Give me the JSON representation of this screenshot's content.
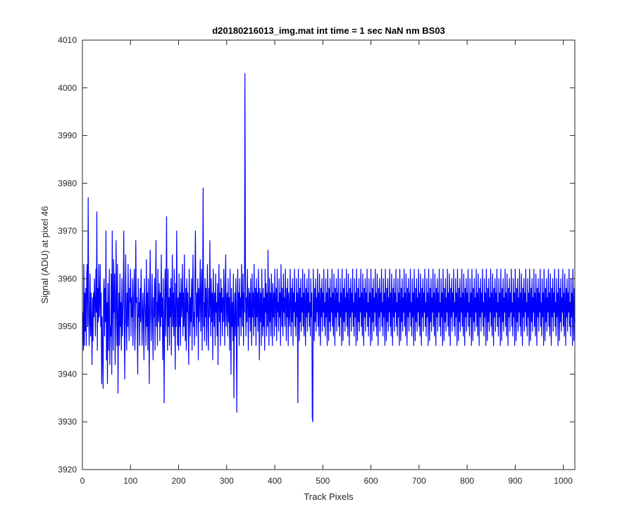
{
  "chart_data": {
    "type": "line",
    "title": "d20180216013_img.mat int time = 1 sec  NaN nm BS03",
    "xlabel": "Track Pixels",
    "ylabel": "Signal (ADU) at pixel 46",
    "xlim": [
      0,
      1024
    ],
    "ylim": [
      3920,
      4010
    ],
    "x_ticks": [
      0,
      100,
      200,
      300,
      400,
      500,
      600,
      700,
      800,
      900,
      1000
    ],
    "x_tick_labels": [
      "0",
      "100",
      "200",
      "300",
      "400",
      "500",
      "600",
      "700",
      "800",
      "900",
      "1000"
    ],
    "y_ticks": [
      3920,
      3930,
      3940,
      3950,
      3960,
      3970,
      3980,
      3990,
      4000,
      4010
    ],
    "y_tick_labels": [
      "3920",
      "3930",
      "3940",
      "3950",
      "3960",
      "3970",
      "3980",
      "3990",
      "4000",
      "4010"
    ],
    "grid": false,
    "line_color": "#0000ff",
    "series": [
      {
        "x_start": 1,
        "x_step": 1,
        "values_approx": "1024-sample noise trace centred near 3953 ADU, typical range 3938-3968",
        "values": [
          3953,
          3945,
          3963,
          3946,
          3957,
          3949,
          3958,
          3946,
          3961,
          3963,
          3950,
          3977,
          3955,
          3946,
          3952,
          3961,
          3948,
          3957,
          3950,
          3942,
          3956,
          3947,
          3957,
          3952,
          3960,
          3955,
          3948,
          3962,
          3953,
          3974,
          3945,
          3958,
          3951,
          3963,
          3952,
          3956,
          3963,
          3950,
          3957,
          3938,
          3952,
          3944,
          3937,
          3957,
          3960,
          3948,
          3958,
          3951,
          3970,
          3943,
          3955,
          3938,
          3959,
          3945,
          3953,
          3962,
          3942,
          3950,
          3948,
          3961,
          3940,
          3970,
          3955,
          3945,
          3964,
          3953,
          3961,
          3942,
          3950,
          3968,
          3955,
          3946,
          3963,
          3936,
          3951,
          3957,
          3946,
          3961,
          3950,
          3955,
          3945,
          3960,
          3948,
          3952,
          3957,
          3970,
          3950,
          3939,
          3955,
          3965,
          3951,
          3945,
          3957,
          3950,
          3963,
          3953,
          3947,
          3958,
          3955,
          3962,
          3948,
          3956,
          3952,
          3960,
          3946,
          3953,
          3958,
          3962,
          3945,
          3950,
          3968,
          3955,
          3956,
          3950,
          3940,
          3960,
          3952,
          3955,
          3946,
          3958,
          3951,
          3962,
          3955,
          3946,
          3953,
          3957,
          3950,
          3943,
          3960,
          3955,
          3952,
          3946,
          3964,
          3950,
          3957,
          3945,
          3960,
          3953,
          3938,
          3958,
          3966,
          3952,
          3947,
          3955,
          3961,
          3950,
          3943,
          3956,
          3952,
          3960,
          3945,
          3958,
          3968,
          3950,
          3955,
          3946,
          3962,
          3951,
          3954,
          3959,
          3947,
          3957,
          3950,
          3965,
          3952,
          3956,
          3943,
          3960,
          3950,
          3934,
          3955,
          3962,
          3948,
          3957,
          3973,
          3951,
          3945,
          3962,
          3950,
          3956,
          3946,
          3958,
          3952,
          3960,
          3944,
          3955,
          3965,
          3950,
          3957,
          3948,
          3962,
          3953,
          3941,
          3959,
          3950,
          3970,
          3955,
          3946,
          3956,
          3945,
          3961,
          3950,
          3957,
          3946,
          3960,
          3952,
          3955,
          3963,
          3948,
          3957,
          3950,
          3965,
          3952,
          3947,
          3958,
          3945,
          3960,
          3953,
          3957,
          3950,
          3942,
          3962,
          3955,
          3948,
          3956,
          3951,
          3960,
          3945,
          3957,
          3965,
          3950,
          3953,
          3946,
          3961,
          3970,
          3955,
          3948,
          3957,
          3952,
          3960,
          3943,
          3958,
          3951,
          3956,
          3964,
          3949,
          3955,
          3962,
          3945,
          3957,
          3979,
          3950,
          3955,
          3947,
          3960,
          3952,
          3958,
          3946,
          3956,
          3963,
          3950,
          3945,
          3958,
          3952,
          3968,
          3955,
          3948,
          3960,
          3951,
          3957,
          3943,
          3962,
          3955,
          3950,
          3957,
          3946,
          3961,
          3953,
          3955,
          3948,
          3959,
          3942,
          3955,
          3963,
          3951,
          3957,
          3946,
          3960,
          3953,
          3958,
          3948,
          3956,
          3951,
          3962,
          3955,
          3946,
          3958,
          3965,
          3950,
          3955,
          3957,
          3948,
          3960,
          3951,
          3956,
          3945,
          3962,
          3953,
          3940,
          3958,
          3950,
          3955,
          3947,
          3961,
          3935,
          3952,
          3957,
          3948,
          3960,
          3953,
          3932,
          3955,
          3962,
          3950,
          3957,
          3946,
          3960,
          3952,
          3956,
          3948,
          3963,
          3955,
          3950,
          3961,
          3946,
          3957,
          3953,
          4003,
          3960,
          3948,
          3956,
          3951,
          3962,
          3955,
          3945,
          3958,
          3952,
          3957,
          3949,
          3960,
          3953,
          3946,
          3961,
          3952,
          3957,
          3948,
          3963,
          3955,
          3950,
          3958,
          3946,
          3960,
          3952,
          3957,
          3949,
          3962,
          3955,
          3943,
          3958,
          3951,
          3957,
          3946,
          3962,
          3953,
          3948,
          3958,
          3950,
          3956,
          3945,
          3962,
          3953,
          3959,
          3948,
          3957,
          3950,
          3966,
          3953,
          3946,
          3960,
          3951,
          3957,
          3948,
          3961,
          3955,
          3946,
          3959,
          3952,
          3957,
          3948,
          3962,
          3955,
          3950,
          3958,
          3947,
          3962,
          3953,
          3955,
          3949,
          3960,
          3952,
          3957,
          3946,
          3963,
          3955,
          3950,
          3958,
          3948,
          3961,
          3953,
          3956,
          3950,
          3962,
          3955,
          3947,
          3958,
          3952,
          3960,
          3946,
          3957,
          3953,
          3950,
          3962,
          3955,
          3948,
          3958,
          3951,
          3960,
          3946,
          3957,
          3953,
          3962,
          3950,
          3955,
          3948,
          3960,
          3952,
          3957,
          3934,
          3962,
          3955,
          3947,
          3958,
          3951,
          3960,
          3949,
          3956,
          3953,
          3962,
          3950,
          3957,
          3948,
          3961,
          3955,
          3946,
          3958,
          3952,
          3960,
          3949,
          3957,
          3953,
          3962,
          3950,
          3955,
          3948,
          3960,
          3952,
          3957,
          3931,
          3930,
          3962,
          3955,
          3947,
          3958,
          3951,
          3960,
          3949,
          3956,
          3953,
          3962,
          3950,
          3957,
          3948,
          3961,
          3955,
          3946,
          3958,
          3952,
          3960,
          3949,
          3957,
          3953,
          3962,
          3950,
          3955,
          3948,
          3960,
          3952,
          3957,
          3946,
          3962,
          3955,
          3947,
          3958,
          3951,
          3960,
          3949,
          3956,
          3953,
          3962,
          3950,
          3957,
          3948,
          3961,
          3955,
          3946,
          3958,
          3952,
          3960,
          3949,
          3957,
          3953,
          3962,
          3950,
          3955,
          3948,
          3960,
          3952,
          3957,
          3946,
          3962,
          3955,
          3947,
          3958,
          3951,
          3960,
          3949,
          3956,
          3953,
          3962,
          3950,
          3957,
          3948,
          3961,
          3955,
          3946,
          3958,
          3952,
          3960,
          3949,
          3957,
          3953,
          3962,
          3950,
          3955,
          3948,
          3960,
          3952,
          3957,
          3946,
          3962,
          3955,
          3947,
          3958,
          3951,
          3960,
          3949,
          3956,
          3953,
          3962,
          3950,
          3957,
          3948,
          3961,
          3955,
          3946,
          3958,
          3952,
          3960,
          3949,
          3957,
          3953,
          3962,
          3950,
          3955,
          3948,
          3960,
          3952,
          3957,
          3946,
          3962,
          3955,
          3947,
          3958,
          3951,
          3960,
          3949,
          3956,
          3953,
          3962,
          3950,
          3957,
          3948,
          3961,
          3955,
          3946,
          3958,
          3952,
          3960,
          3949,
          3957,
          3953,
          3962,
          3950,
          3955,
          3948,
          3960,
          3952,
          3957,
          3946,
          3962,
          3955,
          3947,
          3958,
          3951,
          3960,
          3949,
          3956,
          3953,
          3962,
          3950,
          3957,
          3948,
          3961,
          3955,
          3946,
          3958,
          3952,
          3960,
          3949,
          3957,
          3953,
          3962,
          3950,
          3955,
          3948,
          3960,
          3952,
          3957,
          3946,
          3962,
          3955,
          3947,
          3958,
          3951,
          3960,
          3949,
          3956,
          3953,
          3962,
          3950,
          3957,
          3948,
          3961,
          3955,
          3946,
          3958,
          3952,
          3960,
          3949,
          3957,
          3953,
          3962,
          3950,
          3955,
          3948,
          3960,
          3952,
          3957,
          3946,
          3962,
          3955,
          3947,
          3958,
          3951,
          3960,
          3949,
          3956,
          3953,
          3962,
          3950,
          3957,
          3948,
          3961,
          3955,
          3946,
          3958,
          3952,
          3960,
          3949,
          3957,
          3953,
          3962,
          3950,
          3955,
          3948,
          3960,
          3952,
          3957,
          3946,
          3962,
          3955,
          3947,
          3958,
          3951,
          3960,
          3949,
          3956,
          3953,
          3962,
          3950,
          3957,
          3948,
          3961,
          3955,
          3946,
          3958,
          3952,
          3960,
          3949,
          3957,
          3953,
          3962,
          3950,
          3955,
          3948,
          3960,
          3952,
          3957,
          3946,
          3962,
          3955,
          3947,
          3958,
          3951,
          3960,
          3949,
          3956,
          3953,
          3962,
          3950,
          3957,
          3948,
          3961,
          3955,
          3946,
          3958,
          3952,
          3960,
          3949,
          3957,
          3953,
          3962,
          3950,
          3955,
          3948,
          3960,
          3952,
          3957,
          3946,
          3962,
          3955,
          3947,
          3958,
          3951,
          3960,
          3949,
          3956,
          3953,
          3962,
          3950,
          3957,
          3948,
          3961,
          3955,
          3946,
          3958,
          3952,
          3960,
          3949,
          3957,
          3953,
          3962,
          3950,
          3955,
          3948,
          3960,
          3952,
          3957,
          3946,
          3962,
          3955,
          3947,
          3958,
          3951,
          3960,
          3949,
          3956,
          3953,
          3962,
          3950,
          3957,
          3948,
          3961,
          3955,
          3946,
          3958,
          3952,
          3960,
          3949,
          3957,
          3953,
          3962,
          3950,
          3955,
          3948,
          3960,
          3952,
          3957,
          3946,
          3962,
          3955,
          3947,
          3958,
          3951,
          3960,
          3949,
          3956,
          3953,
          3962,
          3950,
          3957,
          3948,
          3961,
          3955,
          3946,
          3958,
          3952,
          3960,
          3949,
          3957,
          3953,
          3962,
          3950,
          3955,
          3948,
          3960,
          3952,
          3957,
          3946,
          3962,
          3955,
          3947,
          3958,
          3951,
          3960,
          3949,
          3956,
          3953,
          3962,
          3950,
          3957,
          3948,
          3961,
          3955,
          3946,
          3958,
          3952,
          3960,
          3949,
          3957,
          3953,
          3962,
          3950,
          3955,
          3948,
          3960,
          3952,
          3957,
          3946,
          3962,
          3955,
          3947,
          3958,
          3951,
          3960,
          3949,
          3956,
          3953,
          3962,
          3950,
          3957,
          3948,
          3961,
          3955,
          3946,
          3958,
          3952,
          3960,
          3949,
          3957,
          3953,
          3962,
          3950,
          3955,
          3948,
          3960,
          3952,
          3957,
          3946,
          3962,
          3955,
          3947,
          3958,
          3951,
          3960,
          3949,
          3956,
          3953,
          3962,
          3950,
          3957,
          3948,
          3961,
          3955,
          3946,
          3958,
          3952,
          3960,
          3949,
          3957,
          3953,
          3962,
          3950,
          3955,
          3948,
          3960,
          3952,
          3957,
          3946,
          3962,
          3955,
          3947,
          3958,
          3951,
          3960,
          3949,
          3956,
          3953,
          3962,
          3950,
          3957,
          3948,
          3961,
          3955,
          3946,
          3958,
          3952,
          3960,
          3949,
          3957,
          3953,
          3962,
          3950,
          3955,
          3948,
          3960,
          3952,
          3957,
          3946,
          3962,
          3955,
          3947,
          3958,
          3951,
          3960,
          3949,
          3956,
          3953,
          3962,
          3950,
          3957,
          3948,
          3961,
          3955,
          3946,
          3958,
          3952,
          3960,
          3949,
          3957,
          3953,
          3962,
          3950,
          3955,
          3948,
          3960,
          3952,
          3957,
          3946,
          3962,
          3955,
          3947,
          3958,
          3951,
          3960,
          3949,
          3956,
          3953,
          3962,
          3950,
          3957,
          3948,
          3961,
          3955,
          3946,
          3958,
          3952,
          3960,
          3949,
          3957,
          3953,
          3962,
          3950,
          3955,
          3948,
          3960,
          3952,
          3957,
          3946,
          3962,
          3955,
          3947,
          3958,
          3951,
          3960,
          3949,
          3956,
          3953,
          3962,
          3950,
          3957,
          3948,
          3961,
          3955,
          3946,
          3958,
          3952,
          3960,
          3949,
          3957,
          3953,
          3962
        ]
      }
    ]
  }
}
